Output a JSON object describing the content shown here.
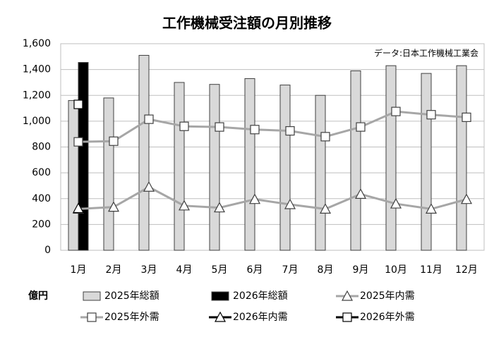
{
  "chart_data": {
    "type": "bar",
    "title": "工作機械受注額の月別推移",
    "annotation": "データ:日本工作機械工業会",
    "unit_label": "億円",
    "categories": [
      "1月",
      "2月",
      "3月",
      "4月",
      "5月",
      "6月",
      "7月",
      "8月",
      "9月",
      "10月",
      "11月",
      "12月"
    ],
    "series": [
      {
        "name": "2025年総額",
        "type": "bar",
        "color": "#d9d9d9",
        "values": [
          1160,
          1180,
          1510,
          1300,
          1285,
          1330,
          1280,
          1200,
          1390,
          1430,
          1370,
          1430
        ]
      },
      {
        "name": "2026年総額",
        "type": "bar",
        "color": "#000000",
        "values": [
          1455,
          null,
          null,
          null,
          null,
          null,
          null,
          null,
          null,
          null,
          null,
          null
        ]
      },
      {
        "name": "2025年内需",
        "type": "line",
        "marker": "triangle",
        "color": "#a6a6a6",
        "values": [
          320,
          335,
          490,
          345,
          330,
          395,
          355,
          320,
          435,
          360,
          320,
          395
        ]
      },
      {
        "name": "2025年外需",
        "type": "line",
        "marker": "square",
        "color": "#a6a6a6",
        "values": [
          840,
          845,
          1015,
          960,
          955,
          935,
          925,
          880,
          955,
          1075,
          1050,
          1030
        ]
      },
      {
        "name": "2026年内需",
        "type": "line",
        "marker": "triangle",
        "color": "#000000",
        "values": [
          325,
          null,
          null,
          null,
          null,
          null,
          null,
          null,
          null,
          null,
          null,
          null
        ]
      },
      {
        "name": "2026年外需",
        "type": "line",
        "marker": "square",
        "color": "#000000",
        "values": [
          1130,
          null,
          null,
          null,
          null,
          null,
          null,
          null,
          null,
          null,
          null,
          null
        ]
      }
    ],
    "ylim": [
      0,
      1600
    ],
    "yticks": [
      0,
      200,
      400,
      600,
      800,
      {
        "value": 1000,
        "label": "1,000"
      },
      {
        "value": 1200,
        "label": "1,200"
      },
      {
        "value": 1400,
        "label": "1,400"
      },
      {
        "value": 1600,
        "label": "1,600"
      }
    ],
    "grid": true,
    "legend": "bottom"
  }
}
